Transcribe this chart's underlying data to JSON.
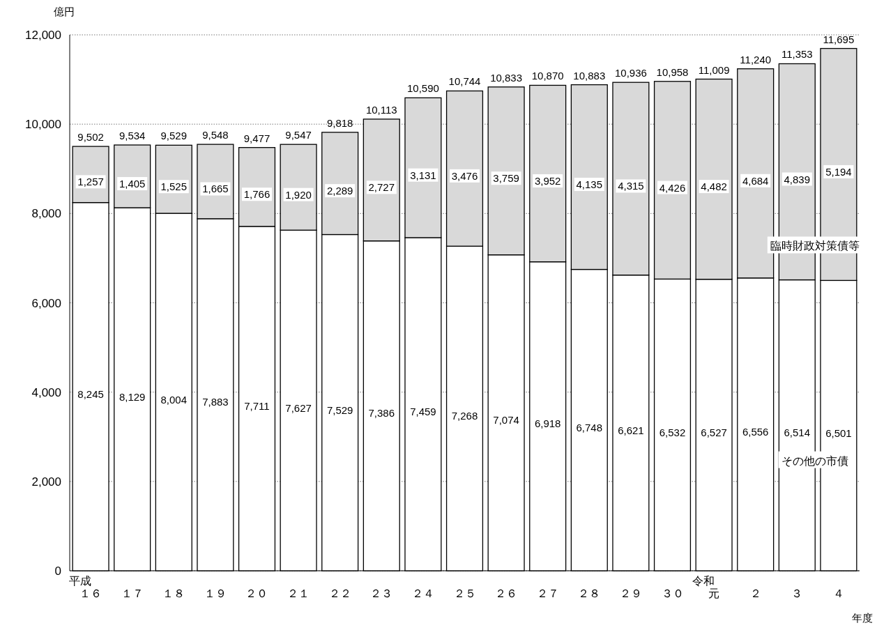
{
  "chart_data": {
    "type": "bar",
    "stacked": true,
    "ylabel": "億円",
    "xlabel": "年度",
    "categories": [
      "平成１６",
      "１７",
      "１８",
      "１９",
      "２０",
      "２１",
      "２２",
      "２３",
      "２４",
      "２５",
      "２６",
      "２７",
      "２８",
      "２９",
      "３０",
      "令和元",
      "２",
      "３",
      "４"
    ],
    "data_labels": true,
    "series": [
      {
        "name": "その他の市債",
        "color": "#ffffff",
        "values": [
          8245,
          8129,
          8004,
          7883,
          7711,
          7627,
          7529,
          7386,
          7459,
          7268,
          7074,
          6918,
          6748,
          6621,
          6532,
          6527,
          6556,
          6514,
          6501
        ],
        "value_labels": [
          "8,245",
          "8,129",
          "8,004",
          "7,883",
          "7,711",
          "7,627",
          "7,529",
          "7,386",
          "7,459",
          "7,268",
          "7,074",
          "6,918",
          "6,748",
          "6,621",
          "6,532",
          "6,527",
          "6,556",
          "6,514",
          "6,501"
        ]
      },
      {
        "name": "臨時財政対策債等",
        "color": "#d9d9d9",
        "values": [
          1257,
          1405,
          1525,
          1665,
          1766,
          1920,
          2289,
          2727,
          3131,
          3476,
          3759,
          3952,
          4135,
          4315,
          4426,
          4482,
          4684,
          4839,
          5194
        ],
        "value_labels": [
          "1,257",
          "1,405",
          "1,525",
          "1,665",
          "1,766",
          "1,920",
          "2,289",
          "2,727",
          "3,131",
          "3,476",
          "3,759",
          "3,952",
          "4,135",
          "4,315",
          "4,426",
          "4,482",
          "4,684",
          "4,839",
          "5,194"
        ]
      }
    ],
    "totals": [
      "9,502",
      "9,534",
      "9,529",
      "9,548",
      "9,477",
      "9,547",
      "9,818",
      "10,113",
      "10,590",
      "10,744",
      "10,833",
      "10,870",
      "10,883",
      "10,936",
      "10,958",
      "11,009",
      "11,240",
      "11,353",
      "11,695"
    ],
    "ylim": [
      0,
      12000
    ],
    "yticks": [
      {
        "value": 0,
        "label": "0"
      },
      {
        "value": 2000,
        "label": "2,000"
      },
      {
        "value": 4000,
        "label": "4,000"
      },
      {
        "value": 6000,
        "label": "6,000"
      },
      {
        "value": 8000,
        "label": "8,000"
      },
      {
        "value": 10000,
        "label": "10,000"
      },
      {
        "value": 12000,
        "label": "12,000"
      }
    ],
    "grid": "y"
  }
}
